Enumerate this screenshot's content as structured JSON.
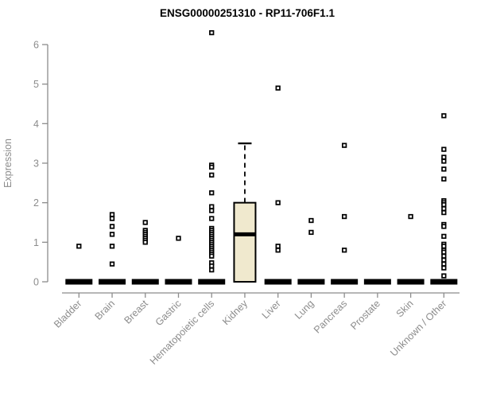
{
  "chart_data": {
    "type": "boxplot",
    "title": "ENSG00000251310 - RP11-706F1.1",
    "ylabel": "Expression",
    "xlabel": "",
    "ylim": [
      0,
      6
    ],
    "yticks": [
      0,
      1,
      2,
      3,
      4,
      5,
      6
    ],
    "grid": false,
    "legend": "none",
    "categories": [
      "Bladder",
      "Brain",
      "Breast",
      "Gastric",
      "Hematopoietic cells",
      "Kidney",
      "Liver",
      "Lung",
      "Pancreas",
      "Prostate",
      "Skin",
      "Unknown / Other"
    ],
    "series": [
      {
        "category": "Bladder",
        "q1": 0,
        "median": 0,
        "q3": 0,
        "whisker_low": 0,
        "whisker_high": 0,
        "outliers": [
          0.9
        ]
      },
      {
        "category": "Brain",
        "q1": 0,
        "median": 0,
        "q3": 0,
        "whisker_low": 0,
        "whisker_high": 0,
        "outliers": [
          1.7,
          1.6,
          1.4,
          1.2,
          0.9,
          0.45
        ]
      },
      {
        "category": "Breast",
        "q1": 0,
        "median": 0,
        "q3": 0,
        "whisker_low": 0,
        "whisker_high": 0,
        "outliers": [
          1.5,
          1.3,
          1.25,
          1.2,
          1.15,
          1.1,
          1.05,
          1.0
        ]
      },
      {
        "category": "Gastric",
        "q1": 0,
        "median": 0,
        "q3": 0,
        "whisker_low": 0,
        "whisker_high": 0,
        "outliers": [
          1.1
        ]
      },
      {
        "category": "Hematopoietic cells",
        "q1": 0,
        "median": 0,
        "q3": 0,
        "whisker_low": 0,
        "whisker_high": 0,
        "outliers": [
          6.3,
          2.95,
          2.9,
          2.7,
          2.25,
          1.9,
          1.8,
          1.6,
          1.35,
          1.3,
          1.25,
          1.2,
          1.15,
          1.1,
          1.05,
          1.0,
          0.95,
          0.9,
          0.85,
          0.8,
          0.75,
          0.7,
          0.65,
          0.48,
          0.4,
          0.3
        ]
      },
      {
        "category": "Kidney",
        "q1": 0,
        "median": 1.2,
        "q3": 2.0,
        "whisker_low": 0,
        "whisker_high": 3.5,
        "outliers": []
      },
      {
        "category": "Liver",
        "q1": 0,
        "median": 0,
        "q3": 0,
        "whisker_low": 0,
        "whisker_high": 0,
        "outliers": [
          4.9,
          2.0,
          0.9,
          0.8
        ]
      },
      {
        "category": "Lung",
        "q1": 0,
        "median": 0,
        "q3": 0,
        "whisker_low": 0,
        "whisker_high": 0,
        "outliers": [
          1.55,
          1.25
        ]
      },
      {
        "category": "Pancreas",
        "q1": 0,
        "median": 0,
        "q3": 0,
        "whisker_low": 0,
        "whisker_high": 0,
        "outliers": [
          3.45,
          1.65,
          0.8
        ]
      },
      {
        "category": "Prostate",
        "q1": 0,
        "median": 0,
        "q3": 0,
        "whisker_low": 0,
        "whisker_high": 0,
        "outliers": []
      },
      {
        "category": "Skin",
        "q1": 0,
        "median": 0,
        "q3": 0,
        "whisker_low": 0,
        "whisker_high": 0,
        "outliers": [
          1.65
        ]
      },
      {
        "category": "Unknown / Other",
        "q1": 0,
        "median": 0,
        "q3": 0,
        "whisker_low": 0,
        "whisker_high": 0,
        "outliers": [
          4.2,
          3.35,
          3.15,
          3.05,
          2.85,
          2.6,
          2.05,
          2.0,
          1.95,
          1.85,
          1.75,
          1.45,
          1.4,
          1.15,
          0.95,
          0.9,
          0.8,
          0.75,
          0.65,
          0.55,
          0.45,
          0.35,
          0.15
        ]
      }
    ]
  },
  "colors": {
    "background": "#ffffff",
    "axis": "#8c8c8c",
    "axis_text": "#8c8c8c",
    "title": "#000000",
    "point_stroke": "#000000",
    "point_fill": "#ffffff",
    "box_fill": "#f0e9ce",
    "box_stroke": "#000000",
    "collapsed_bar": "#000000"
  }
}
